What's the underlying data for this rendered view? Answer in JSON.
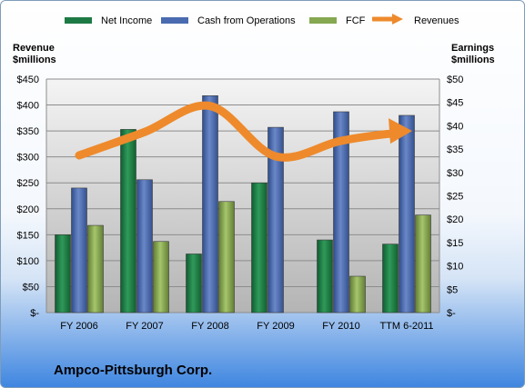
{
  "chart_data": {
    "type": "bar",
    "title": "Ampco-Pittsburgh Corp.",
    "categories": [
      "FY 2006",
      "FY 2007",
      "FY 2008",
      "FY 2009",
      "FY 2010",
      "TTM 6-2011"
    ],
    "y_left": {
      "label_line1": "Revenue",
      "label_line2": "$millions",
      "ticks": [
        "$-",
        "$50",
        "$100",
        "$150",
        "$200",
        "$250",
        "$300",
        "$350",
        "$400",
        "$450"
      ],
      "range": [
        0,
        450
      ]
    },
    "y_right": {
      "label_line1": "Earnings",
      "label_line2": "$millions",
      "ticks": [
        "$-",
        "$5",
        "$10",
        "$15",
        "$20",
        "$25",
        "$30",
        "$35",
        "$40",
        "$45",
        "$50"
      ],
      "range": [
        0,
        50
      ]
    },
    "series": [
      {
        "name": "Net Income",
        "type": "bar",
        "axis": "left",
        "color": "#1e7a44",
        "values": [
          150,
          353,
          113,
          250,
          140,
          132
        ]
      },
      {
        "name": "Cash from Operations",
        "type": "bar",
        "axis": "left",
        "color": "#4a6bb0",
        "values": [
          240,
          256,
          418,
          357,
          387,
          380
        ]
      },
      {
        "name": "FCF",
        "type": "bar",
        "axis": "left",
        "color": "#86a851",
        "values": [
          168,
          137,
          214,
          0,
          70,
          188
        ]
      },
      {
        "name": "Revenues",
        "type": "line",
        "axis": "left",
        "color": "#ee8a2c",
        "values": [
          303,
          348,
          398,
          301,
          331,
          350
        ]
      }
    ],
    "legend_placement": "top",
    "grid": true
  }
}
